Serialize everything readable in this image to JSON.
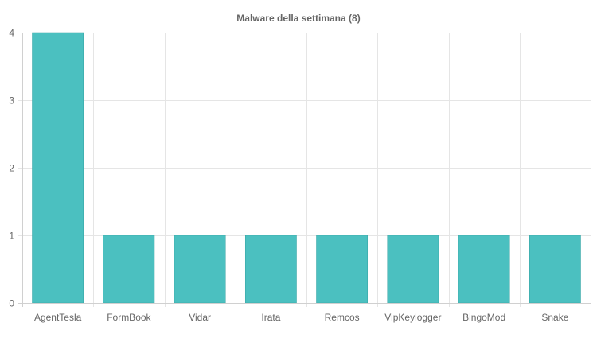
{
  "chart_data": {
    "type": "bar",
    "title": "Malware della settimana (8)",
    "categories": [
      "AgentTesla",
      "FormBook",
      "Vidar",
      "Irata",
      "Remcos",
      "VipKeylogger",
      "BingoMod",
      "Snake"
    ],
    "values": [
      4,
      1,
      1,
      1,
      1,
      1,
      1,
      1
    ],
    "ylim": [
      0,
      4
    ],
    "yticks": [
      0,
      1,
      2,
      3,
      4
    ],
    "grid": true,
    "legend": "none",
    "bar_color": "#4bc0c0",
    "bar_border_color": "#36a2a2"
  }
}
